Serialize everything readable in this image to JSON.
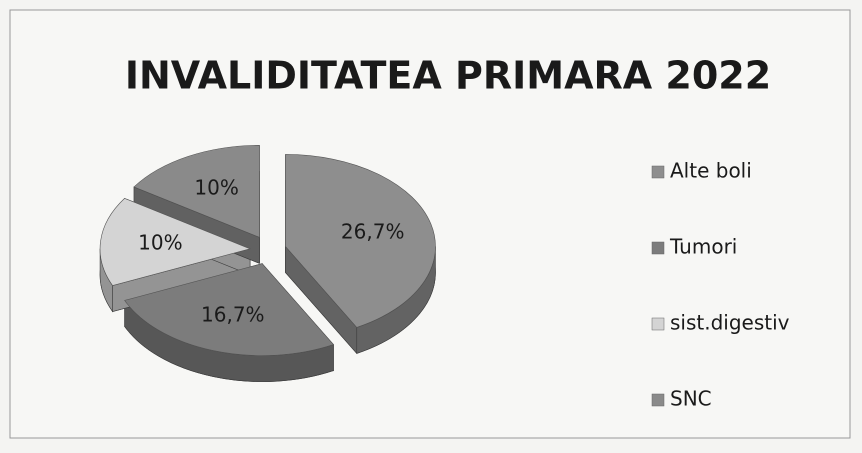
{
  "chart_data": {
    "type": "pie",
    "title": "INVALIDITATEA PRIMARA 2022",
    "categories": [
      "Alte boli",
      "Tumori",
      "sist.digestiv",
      "SNC"
    ],
    "values": [
      26.7,
      16.7,
      10,
      10
    ],
    "value_labels": [
      "26,7%",
      "16,7%",
      "10%",
      "10%"
    ],
    "colors": [
      "#8e8e8e",
      "#7c7c7c",
      "#d4d4d4",
      "#8a8a8a"
    ],
    "legend": "right"
  }
}
